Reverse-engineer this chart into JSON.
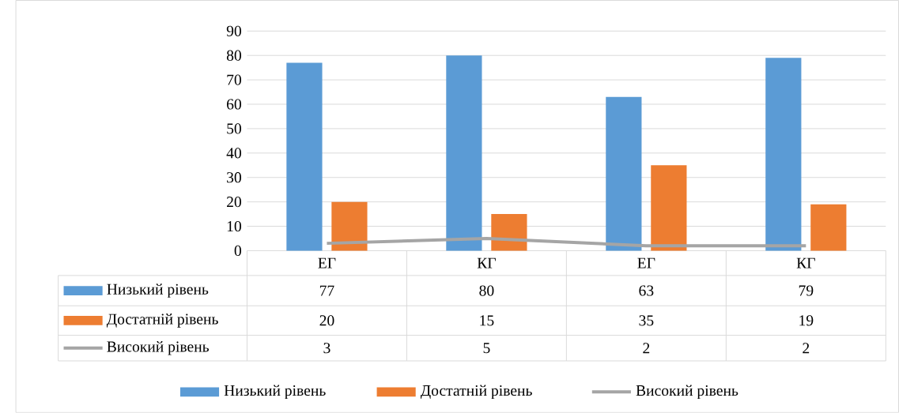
{
  "chart_data": {
    "type": "bar",
    "categories": [
      "ЕГ",
      "КГ",
      "ЕГ",
      "КГ"
    ],
    "series": [
      {
        "name": "Низький рівень",
        "color": "#5b9bd5",
        "values": [
          77,
          80,
          63,
          79
        ]
      },
      {
        "name": "Достатній рівень",
        "color": "#ed7d31",
        "values": [
          20,
          15,
          35,
          19
        ]
      },
      {
        "name": "Високий рівень",
        "color": "#a5a5a5",
        "type": "line",
        "values": [
          3,
          5,
          2,
          2
        ]
      }
    ],
    "ylim": [
      0,
      90
    ],
    "yticks": [
      0,
      10,
      20,
      30,
      40,
      50,
      60,
      70,
      80,
      90
    ],
    "grid": "y",
    "legend": "bottom",
    "data_labels": true
  }
}
